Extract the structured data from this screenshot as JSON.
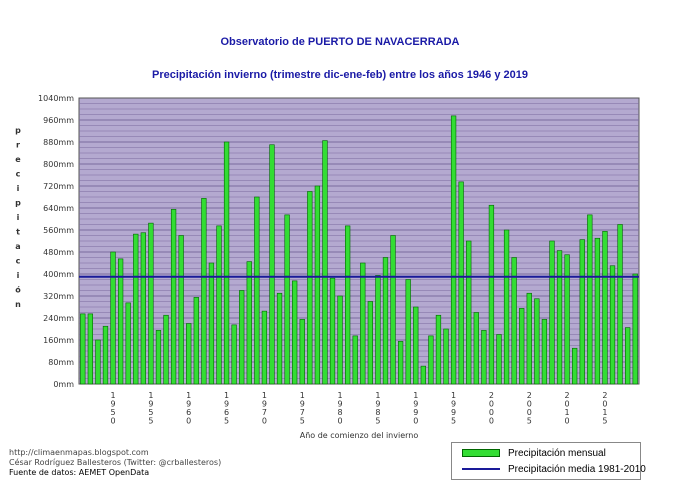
{
  "title": "Observatorio de PUERTO DE NAVACERRADA",
  "subtitle": "Precipitación invierno (trimestre dic-ene-feb) entre los años 1946 y 2019",
  "credits": {
    "url": "http://climaenmapas.blogspot.com",
    "author": "César Rodríguez Ballesteros (Twitter: @crballesteros)",
    "source": "Fuente de datos: AEMET OpenData"
  },
  "colors": {
    "plot_bg": "#b4a9d0",
    "grid": "#7a6a9e",
    "bar": "#33dd33",
    "bar_edge": "#006600",
    "mean": "#1a1a99",
    "title": "#1a1aa6"
  },
  "chart_data": {
    "type": "bar",
    "title": "Precipitación invierno (trimestre dic-ene-feb) entre los años 1946 y 2019",
    "xlabel": "Año de comienzo del invierno",
    "ylabel": "precipitación",
    "ylim": [
      0,
      1040
    ],
    "y_ticks": [
      "0mm",
      "80mm",
      "160mm",
      "240mm",
      "320mm",
      "400mm",
      "480mm",
      "560mm",
      "640mm",
      "720mm",
      "800mm",
      "880mm",
      "960mm",
      "1040mm"
    ],
    "x_tick_labels": [
      "1950",
      "1955",
      "1960",
      "1965",
      "1970",
      "1975",
      "1980",
      "1985",
      "1990",
      "1995",
      "2000",
      "2005",
      "2010",
      "2015"
    ],
    "grid": true,
    "x_start": 1946,
    "series": [
      {
        "name": "Precipitación mensual",
        "values": [
          255,
          255,
          160,
          210,
          480,
          455,
          295,
          545,
          550,
          585,
          195,
          250,
          635,
          540,
          220,
          315,
          675,
          440,
          575,
          880,
          215,
          340,
          445,
          680,
          265,
          870,
          330,
          615,
          375,
          235,
          700,
          720,
          885,
          385,
          320,
          575,
          175,
          440,
          300,
          395,
          460,
          540,
          155,
          380,
          280,
          65,
          175,
          250,
          200,
          975,
          735,
          520,
          260,
          195,
          650,
          180,
          560,
          460,
          275,
          330,
          310,
          235,
          520,
          485,
          470,
          130,
          525,
          615,
          530,
          555,
          430,
          580,
          205,
          400
        ]
      }
    ],
    "mean": {
      "name": "Precipitación media 1981-2010",
      "value": 390
    }
  }
}
